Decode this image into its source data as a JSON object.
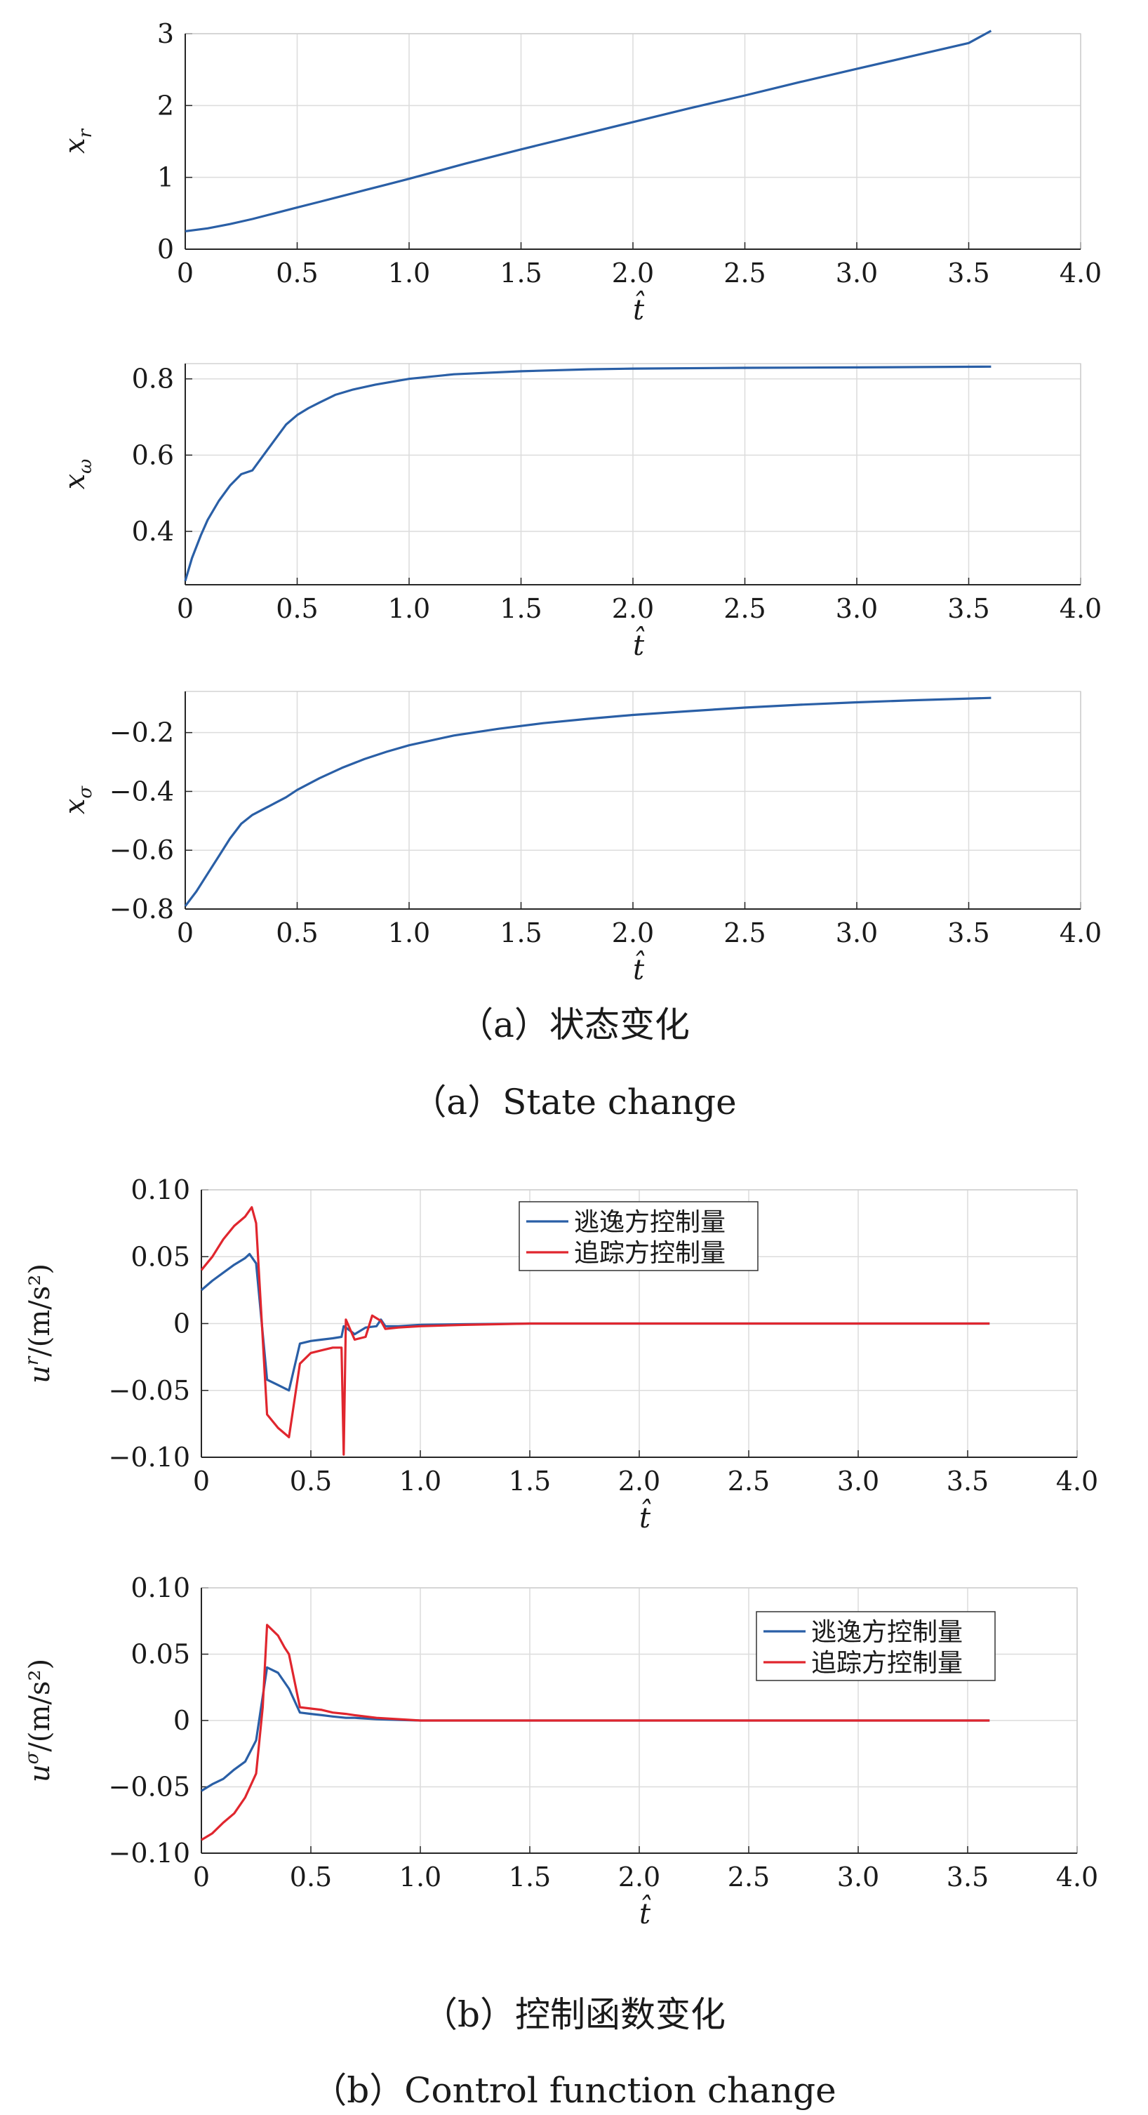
{
  "captions": {
    "a_cn": "（a）状态变化",
    "a_en": "（a）State change",
    "b_cn": "（b）控制函数变化",
    "b_en": "（b）Control function change"
  },
  "colors": {
    "blue": "#2a5fa6",
    "red": "#e0262e",
    "grid": "#dcdcdc",
    "axis": "#262626"
  },
  "chart_data": [
    {
      "type": "line",
      "xlabel": "t̂",
      "ylabel": "x_r",
      "xlim": [
        0,
        4
      ],
      "ylim": [
        0,
        3
      ],
      "xticks": [
        "0",
        "0.5",
        "1.0",
        "1.5",
        "2.0",
        "2.5",
        "3.0",
        "3.5",
        "4.0"
      ],
      "yticks": [
        "0",
        "1",
        "2",
        "3"
      ],
      "grid": true,
      "series": [
        {
          "color": "#2a5fa6",
          "points": [
            [
              0,
              0.25
            ],
            [
              0.1,
              0.29
            ],
            [
              0.2,
              0.35
            ],
            [
              0.3,
              0.42
            ],
            [
              0.4,
              0.5
            ],
            [
              0.5,
              0.58
            ],
            [
              0.6,
              0.66
            ],
            [
              0.7,
              0.74
            ],
            [
              0.8,
              0.82
            ],
            [
              0.9,
              0.9
            ],
            [
              1.0,
              0.98
            ],
            [
              1.25,
              1.19
            ],
            [
              1.5,
              1.39
            ],
            [
              1.75,
              1.58
            ],
            [
              2.0,
              1.77
            ],
            [
              2.25,
              1.96
            ],
            [
              2.5,
              2.14
            ],
            [
              2.75,
              2.33
            ],
            [
              3.0,
              2.51
            ],
            [
              3.25,
              2.69
            ],
            [
              3.5,
              2.87
            ],
            [
              3.6,
              3.04
            ]
          ]
        }
      ]
    },
    {
      "type": "line",
      "xlabel": "t̂",
      "ylabel": "x_ω",
      "xlim": [
        0,
        4
      ],
      "ylim": [
        0.26,
        0.84
      ],
      "xticks": [
        "0",
        "0.5",
        "1.0",
        "1.5",
        "2.0",
        "2.5",
        "3.0",
        "3.5",
        "4.0"
      ],
      "yticks": [
        "0.4",
        "0.6",
        "0.8"
      ],
      "grid": true,
      "series": [
        {
          "color": "#2a5fa6",
          "points": [
            [
              0,
              0.27
            ],
            [
              0.03,
              0.33
            ],
            [
              0.07,
              0.39
            ],
            [
              0.1,
              0.43
            ],
            [
              0.15,
              0.48
            ],
            [
              0.2,
              0.52
            ],
            [
              0.25,
              0.55
            ],
            [
              0.3,
              0.56
            ],
            [
              0.35,
              0.6
            ],
            [
              0.4,
              0.64
            ],
            [
              0.45,
              0.68
            ],
            [
              0.5,
              0.705
            ],
            [
              0.55,
              0.723
            ],
            [
              0.6,
              0.738
            ],
            [
              0.67,
              0.758
            ],
            [
              0.75,
              0.772
            ],
            [
              0.85,
              0.785
            ],
            [
              1.0,
              0.8
            ],
            [
              1.2,
              0.812
            ],
            [
              1.5,
              0.82
            ],
            [
              1.8,
              0.825
            ],
            [
              2.0,
              0.827
            ],
            [
              2.5,
              0.829
            ],
            [
              3.0,
              0.83
            ],
            [
              3.6,
              0.832
            ]
          ]
        }
      ]
    },
    {
      "type": "line",
      "xlabel": "t̂",
      "ylabel": "x_σ",
      "xlim": [
        0,
        4
      ],
      "ylim": [
        -0.8,
        -0.06
      ],
      "xticks": [
        "0",
        "0.5",
        "1.0",
        "1.5",
        "2.0",
        "2.5",
        "3.0",
        "3.5",
        "4.0"
      ],
      "yticks": [
        "-0.8",
        "-0.6",
        "-0.4",
        "-0.2"
      ],
      "grid": true,
      "series": [
        {
          "color": "#2a5fa6",
          "points": [
            [
              0,
              -0.79
            ],
            [
              0.05,
              -0.74
            ],
            [
              0.1,
              -0.68
            ],
            [
              0.15,
              -0.62
            ],
            [
              0.2,
              -0.56
            ],
            [
              0.25,
              -0.51
            ],
            [
              0.3,
              -0.48
            ],
            [
              0.35,
              -0.46
            ],
            [
              0.4,
              -0.44
            ],
            [
              0.45,
              -0.42
            ],
            [
              0.5,
              -0.395
            ],
            [
              0.6,
              -0.355
            ],
            [
              0.7,
              -0.32
            ],
            [
              0.8,
              -0.29
            ],
            [
              0.9,
              -0.265
            ],
            [
              1.0,
              -0.243
            ],
            [
              1.2,
              -0.21
            ],
            [
              1.4,
              -0.187
            ],
            [
              1.6,
              -0.168
            ],
            [
              1.8,
              -0.153
            ],
            [
              2.0,
              -0.14
            ],
            [
              2.25,
              -0.127
            ],
            [
              2.5,
              -0.115
            ],
            [
              2.75,
              -0.105
            ],
            [
              3.0,
              -0.097
            ],
            [
              3.25,
              -0.09
            ],
            [
              3.6,
              -0.082
            ]
          ]
        }
      ]
    },
    {
      "type": "line",
      "xlabel": "t̂",
      "ylabel": "u^r/(m/s²)",
      "xlim": [
        0,
        4
      ],
      "ylim": [
        -0.1,
        0.1
      ],
      "xticks": [
        "0",
        "0.5",
        "1.0",
        "1.5",
        "2.0",
        "2.5",
        "3.0",
        "3.5",
        "4.0"
      ],
      "yticks": [
        "-0.10",
        "-0.05",
        "0",
        "0.05",
        "0.10"
      ],
      "grid": true,
      "legend": "top-center",
      "series": [
        {
          "name": "逃逸方控制量",
          "color": "#2a5fa6",
          "points": [
            [
              0,
              0.025
            ],
            [
              0.05,
              0.032
            ],
            [
              0.1,
              0.038
            ],
            [
              0.15,
              0.044
            ],
            [
              0.2,
              0.049
            ],
            [
              0.22,
              0.052
            ],
            [
              0.25,
              0.045
            ],
            [
              0.3,
              -0.042
            ],
            [
              0.35,
              -0.046
            ],
            [
              0.4,
              -0.05
            ],
            [
              0.45,
              -0.015
            ],
            [
              0.5,
              -0.013
            ],
            [
              0.55,
              -0.012
            ],
            [
              0.6,
              -0.011
            ],
            [
              0.64,
              -0.01
            ],
            [
              0.65,
              -0.002
            ],
            [
              0.66,
              -0.003
            ],
            [
              0.7,
              -0.008
            ],
            [
              0.75,
              -0.003
            ],
            [
              0.8,
              -0.002
            ],
            [
              0.82,
              0.003
            ],
            [
              0.84,
              -0.002
            ],
            [
              0.9,
              -0.002
            ],
            [
              1.0,
              -0.001
            ],
            [
              1.2,
              -0.0005
            ],
            [
              1.5,
              0
            ],
            [
              3.6,
              0
            ]
          ]
        },
        {
          "name": "追踪方控制量",
          "color": "#e0262e",
          "points": [
            [
              0,
              0.04
            ],
            [
              0.05,
              0.05
            ],
            [
              0.1,
              0.063
            ],
            [
              0.15,
              0.073
            ],
            [
              0.2,
              0.08
            ],
            [
              0.23,
              0.087
            ],
            [
              0.25,
              0.075
            ],
            [
              0.3,
              -0.068
            ],
            [
              0.35,
              -0.078
            ],
            [
              0.4,
              -0.085
            ],
            [
              0.45,
              -0.03
            ],
            [
              0.5,
              -0.022
            ],
            [
              0.55,
              -0.02
            ],
            [
              0.6,
              -0.018
            ],
            [
              0.64,
              -0.018
            ],
            [
              0.65,
              -0.098
            ],
            [
              0.66,
              0.003
            ],
            [
              0.7,
              -0.012
            ],
            [
              0.75,
              -0.01
            ],
            [
              0.78,
              0.006
            ],
            [
              0.82,
              0.002
            ],
            [
              0.84,
              -0.004
            ],
            [
              0.9,
              -0.003
            ],
            [
              1.0,
              -0.002
            ],
            [
              1.2,
              -0.001
            ],
            [
              1.5,
              0
            ],
            [
              3.6,
              0
            ]
          ]
        }
      ]
    },
    {
      "type": "line",
      "xlabel": "t̂",
      "ylabel": "u^σ/(m/s²)",
      "xlim": [
        0,
        4
      ],
      "ylim": [
        -0.1,
        0.1
      ],
      "xticks": [
        "0",
        "0.5",
        "1.0",
        "1.5",
        "2.0",
        "2.5",
        "3.0",
        "3.5",
        "4.0"
      ],
      "yticks": [
        "-0.10",
        "-0.05",
        "0",
        "0.05",
        "0.10"
      ],
      "grid": true,
      "legend": "top-right",
      "series": [
        {
          "name": "逃逸方控制量",
          "color": "#2a5fa6",
          "points": [
            [
              0,
              -0.053
            ],
            [
              0.05,
              -0.048
            ],
            [
              0.1,
              -0.044
            ],
            [
              0.15,
              -0.037
            ],
            [
              0.2,
              -0.031
            ],
            [
              0.25,
              -0.015
            ],
            [
              0.3,
              0.04
            ],
            [
              0.35,
              0.036
            ],
            [
              0.4,
              0.024
            ],
            [
              0.45,
              0.006
            ],
            [
              0.5,
              0.005
            ],
            [
              0.55,
              0.004
            ],
            [
              0.6,
              0.003
            ],
            [
              0.66,
              0.002
            ],
            [
              0.7,
              0.002
            ],
            [
              0.8,
              0.001
            ],
            [
              0.9,
              0.0005
            ],
            [
              1.0,
              0
            ],
            [
              3.6,
              0
            ]
          ]
        },
        {
          "name": "追踪方控制量",
          "color": "#e0262e",
          "points": [
            [
              0,
              -0.09
            ],
            [
              0.05,
              -0.085
            ],
            [
              0.1,
              -0.077
            ],
            [
              0.15,
              -0.07
            ],
            [
              0.2,
              -0.058
            ],
            [
              0.25,
              -0.04
            ],
            [
              0.28,
              0.01
            ],
            [
              0.3,
              0.072
            ],
            [
              0.35,
              0.064
            ],
            [
              0.38,
              0.055
            ],
            [
              0.4,
              0.05
            ],
            [
              0.45,
              0.01
            ],
            [
              0.5,
              0.009
            ],
            [
              0.55,
              0.008
            ],
            [
              0.6,
              0.006
            ],
            [
              0.66,
              0.005
            ],
            [
              0.7,
              0.004
            ],
            [
              0.8,
              0.002
            ],
            [
              0.9,
              0.001
            ],
            [
              1.0,
              0
            ],
            [
              3.6,
              0
            ]
          ]
        }
      ]
    }
  ]
}
